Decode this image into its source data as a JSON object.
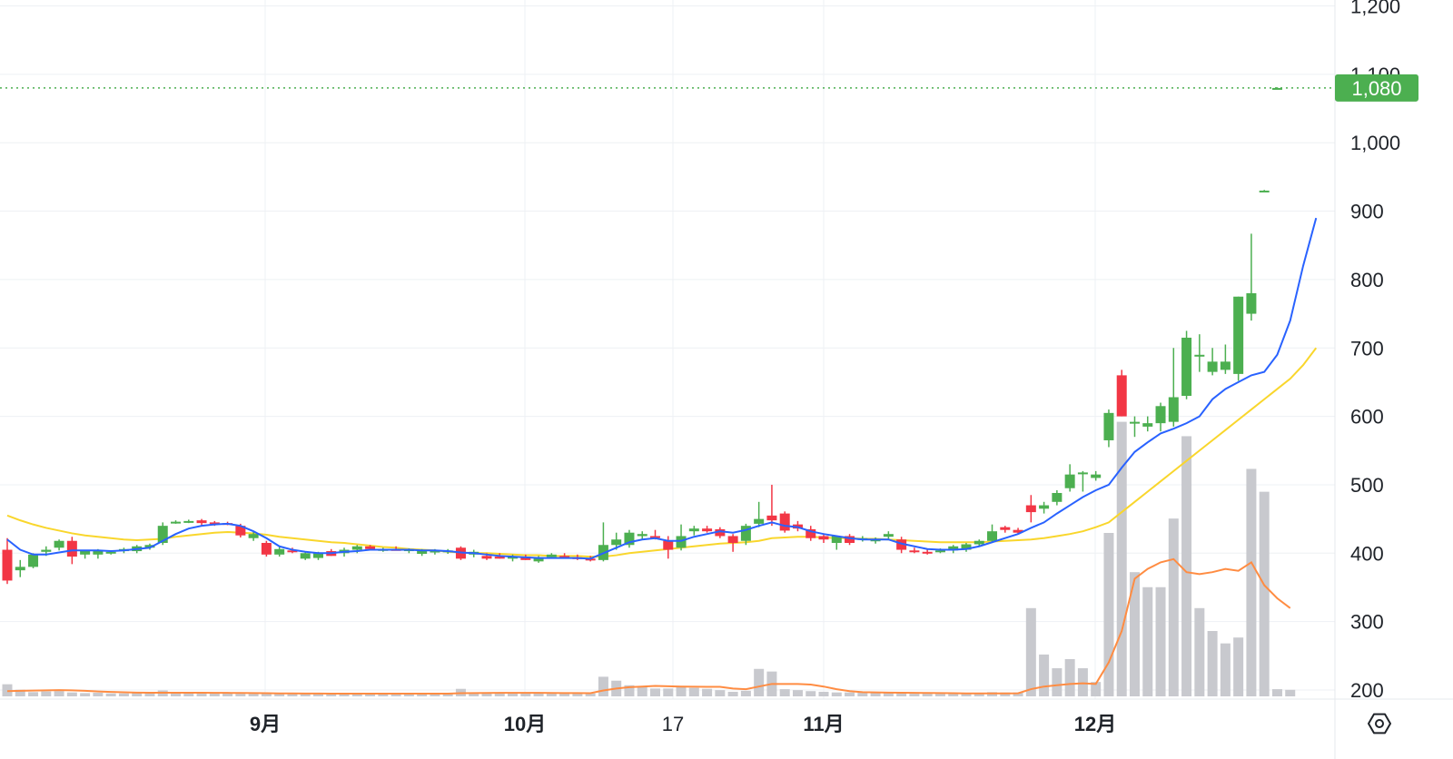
{
  "chart_data": {
    "type": "candlestick",
    "price_axis": {
      "ticks": [
        "200",
        "300",
        "400",
        "500",
        "600",
        "700",
        "800",
        "900",
        "1,000",
        "1,100",
        "1,200"
      ],
      "ylim": [
        190,
        1205
      ]
    },
    "time_axis": {
      "labels": [
        "9月",
        "10月",
        "17",
        "11月",
        "12月"
      ]
    },
    "current_price": {
      "value": 1080,
      "label": "1,080"
    },
    "colors": {
      "up": "#4caf50",
      "down": "#f23645",
      "ma_short": "#2962ff",
      "ma_long": "#f9d62c",
      "volume": "#c8c9ce",
      "volume_ma": "#ff8c42",
      "price_line": "#4caf50",
      "grid": "#eef0f4"
    },
    "candles": [
      {
        "o": 405,
        "h": 422,
        "l": 355,
        "c": 360
      },
      {
        "o": 375,
        "h": 390,
        "l": 365,
        "c": 380
      },
      {
        "o": 380,
        "h": 400,
        "l": 378,
        "c": 398
      },
      {
        "o": 402,
        "h": 410,
        "l": 396,
        "c": 405
      },
      {
        "o": 408,
        "h": 420,
        "l": 404,
        "c": 418
      },
      {
        "o": 418,
        "h": 424,
        "l": 384,
        "c": 395
      },
      {
        "o": 398,
        "h": 405,
        "l": 392,
        "c": 405
      },
      {
        "o": 398,
        "h": 406,
        "l": 392,
        "c": 404
      },
      {
        "o": 400,
        "h": 404,
        "l": 398,
        "c": 402
      },
      {
        "o": 403,
        "h": 408,
        "l": 400,
        "c": 406
      },
      {
        "o": 403,
        "h": 412,
        "l": 400,
        "c": 410
      },
      {
        "o": 408,
        "h": 414,
        "l": 405,
        "c": 412
      },
      {
        "o": 415,
        "h": 445,
        "l": 412,
        "c": 440
      },
      {
        "o": 445,
        "h": 448,
        "l": 443,
        "c": 446
      },
      {
        "o": 446,
        "h": 449,
        "l": 444,
        "c": 447
      },
      {
        "o": 448,
        "h": 450,
        "l": 440,
        "c": 444
      },
      {
        "o": 445,
        "h": 447,
        "l": 440,
        "c": 443
      },
      {
        "o": 444,
        "h": 446,
        "l": 441,
        "c": 442
      },
      {
        "o": 440,
        "h": 443,
        "l": 423,
        "c": 426
      },
      {
        "o": 422,
        "h": 432,
        "l": 418,
        "c": 428
      },
      {
        "o": 415,
        "h": 418,
        "l": 395,
        "c": 398
      },
      {
        "o": 398,
        "h": 410,
        "l": 395,
        "c": 406
      },
      {
        "o": 404,
        "h": 408,
        "l": 400,
        "c": 403
      },
      {
        "o": 392,
        "h": 402,
        "l": 390,
        "c": 400
      },
      {
        "o": 393,
        "h": 402,
        "l": 390,
        "c": 400
      },
      {
        "o": 403,
        "h": 406,
        "l": 396,
        "c": 396
      },
      {
        "o": 400,
        "h": 408,
        "l": 395,
        "c": 405
      },
      {
        "o": 405,
        "h": 412,
        "l": 400,
        "c": 410
      },
      {
        "o": 410,
        "h": 412,
        "l": 404,
        "c": 406
      },
      {
        "o": 405,
        "h": 408,
        "l": 402,
        "c": 406
      },
      {
        "o": 406,
        "h": 410,
        "l": 404,
        "c": 405
      },
      {
        "o": 403,
        "h": 407,
        "l": 400,
        "c": 406
      },
      {
        "o": 399,
        "h": 406,
        "l": 396,
        "c": 404
      },
      {
        "o": 401,
        "h": 406,
        "l": 398,
        "c": 405
      },
      {
        "o": 403,
        "h": 406,
        "l": 399,
        "c": 404
      },
      {
        "o": 408,
        "h": 410,
        "l": 390,
        "c": 392
      },
      {
        "o": 398,
        "h": 405,
        "l": 394,
        "c": 402
      },
      {
        "o": 396,
        "h": 400,
        "l": 390,
        "c": 392
      },
      {
        "o": 395,
        "h": 400,
        "l": 392,
        "c": 392
      },
      {
        "o": 392,
        "h": 398,
        "l": 388,
        "c": 395
      },
      {
        "o": 395,
        "h": 398,
        "l": 390,
        "c": 390
      },
      {
        "o": 388,
        "h": 396,
        "l": 386,
        "c": 394
      },
      {
        "o": 394,
        "h": 400,
        "l": 392,
        "c": 398
      },
      {
        "o": 396,
        "h": 400,
        "l": 392,
        "c": 394
      },
      {
        "o": 394,
        "h": 398,
        "l": 390,
        "c": 392
      },
      {
        "o": 392,
        "h": 396,
        "l": 388,
        "c": 390
      },
      {
        "o": 390,
        "h": 445,
        "l": 388,
        "c": 412
      },
      {
        "o": 412,
        "h": 430,
        "l": 405,
        "c": 420
      },
      {
        "o": 412,
        "h": 434,
        "l": 408,
        "c": 430
      },
      {
        "o": 425,
        "h": 432,
        "l": 420,
        "c": 428
      },
      {
        "o": 425,
        "h": 434,
        "l": 420,
        "c": 423
      },
      {
        "o": 418,
        "h": 425,
        "l": 392,
        "c": 405
      },
      {
        "o": 408,
        "h": 442,
        "l": 404,
        "c": 425
      },
      {
        "o": 432,
        "h": 440,
        "l": 426,
        "c": 436
      },
      {
        "o": 436,
        "h": 440,
        "l": 430,
        "c": 432
      },
      {
        "o": 435,
        "h": 438,
        "l": 422,
        "c": 425
      },
      {
        "o": 425,
        "h": 428,
        "l": 402,
        "c": 415
      },
      {
        "o": 418,
        "h": 443,
        "l": 412,
        "c": 440
      },
      {
        "o": 443,
        "h": 475,
        "l": 438,
        "c": 450
      },
      {
        "o": 455,
        "h": 500,
        "l": 440,
        "c": 448
      },
      {
        "o": 458,
        "h": 461,
        "l": 430,
        "c": 433
      },
      {
        "o": 442,
        "h": 447,
        "l": 432,
        "c": 436
      },
      {
        "o": 435,
        "h": 440,
        "l": 418,
        "c": 422
      },
      {
        "o": 425,
        "h": 428,
        "l": 415,
        "c": 420
      },
      {
        "o": 415,
        "h": 425,
        "l": 405,
        "c": 425
      },
      {
        "o": 425,
        "h": 428,
        "l": 412,
        "c": 415
      },
      {
        "o": 422,
        "h": 425,
        "l": 417,
        "c": 422
      },
      {
        "o": 418,
        "h": 423,
        "l": 414,
        "c": 420
      },
      {
        "o": 424,
        "h": 432,
        "l": 420,
        "c": 428
      },
      {
        "o": 420,
        "h": 424,
        "l": 400,
        "c": 405
      },
      {
        "o": 404,
        "h": 408,
        "l": 400,
        "c": 402
      },
      {
        "o": 402,
        "h": 406,
        "l": 398,
        "c": 400
      },
      {
        "o": 402,
        "h": 407,
        "l": 400,
        "c": 404
      },
      {
        "o": 404,
        "h": 412,
        "l": 400,
        "c": 410
      },
      {
        "o": 405,
        "h": 415,
        "l": 402,
        "c": 413
      },
      {
        "o": 413,
        "h": 420,
        "l": 410,
        "c": 418
      },
      {
        "o": 418,
        "h": 442,
        "l": 415,
        "c": 432
      },
      {
        "o": 438,
        "h": 440,
        "l": 430,
        "c": 434
      },
      {
        "o": 434,
        "h": 437,
        "l": 428,
        "c": 430
      },
      {
        "o": 470,
        "h": 485,
        "l": 445,
        "c": 460
      },
      {
        "o": 465,
        "h": 475,
        "l": 458,
        "c": 470
      },
      {
        "o": 475,
        "h": 492,
        "l": 470,
        "c": 488
      },
      {
        "o": 495,
        "h": 530,
        "l": 490,
        "c": 515
      },
      {
        "o": 518,
        "h": 520,
        "l": 490,
        "c": 518
      },
      {
        "o": 510,
        "h": 520,
        "l": 506,
        "c": 515
      },
      {
        "o": 565,
        "h": 610,
        "l": 555,
        "c": 605
      },
      {
        "o": 660,
        "h": 668,
        "l": 600,
        "c": 600
      },
      {
        "o": 592,
        "h": 600,
        "l": 570,
        "c": 592
      },
      {
        "o": 585,
        "h": 600,
        "l": 578,
        "c": 590
      },
      {
        "o": 590,
        "h": 620,
        "l": 578,
        "c": 615
      },
      {
        "o": 592,
        "h": 700,
        "l": 585,
        "c": 628
      },
      {
        "o": 630,
        "h": 725,
        "l": 625,
        "c": 715
      },
      {
        "o": 690,
        "h": 720,
        "l": 665,
        "c": 690
      },
      {
        "o": 665,
        "h": 700,
        "l": 660,
        "c": 680
      },
      {
        "o": 668,
        "h": 705,
        "l": 662,
        "c": 680
      },
      {
        "o": 662,
        "h": 775,
        "l": 652,
        "c": 775
      },
      {
        "o": 750,
        "h": 867,
        "l": 740,
        "c": 780
      },
      {
        "o": 930,
        "h": 931,
        "l": 929,
        "c": 930
      },
      {
        "o": 1080,
        "h": 1081,
        "l": 1079,
        "c": 1080
      }
    ],
    "ma_short": [
      420,
      405,
      398,
      398,
      401,
      404,
      404,
      404,
      403,
      404,
      406,
      408,
      418,
      428,
      436,
      440,
      442,
      443,
      440,
      432,
      422,
      410,
      405,
      402,
      400,
      400,
      402,
      403,
      405,
      405,
      405,
      405,
      404,
      404,
      403,
      401,
      400,
      398,
      396,
      395,
      394,
      393,
      393,
      393,
      393,
      392,
      400,
      408,
      416,
      420,
      422,
      418,
      418,
      424,
      428,
      432,
      430,
      434,
      440,
      445,
      440,
      438,
      432,
      428,
      425,
      422,
      420,
      420,
      420,
      414,
      410,
      406,
      405,
      405,
      406,
      410,
      416,
      422,
      428,
      437,
      445,
      458,
      470,
      482,
      492,
      500,
      525,
      548,
      562,
      575,
      582,
      590,
      600,
      625,
      640,
      650,
      660,
      665,
      690,
      740,
      820,
      890
    ],
    "ma_long": [
      455,
      448,
      442,
      437,
      433,
      429,
      426,
      424,
      422,
      420,
      419,
      420,
      421,
      424,
      426,
      428,
      430,
      431,
      430,
      429,
      427,
      424,
      422,
      420,
      418,
      416,
      415,
      413,
      411,
      409,
      408,
      406,
      405,
      404,
      402,
      401,
      400,
      400,
      399,
      398,
      397,
      397,
      396,
      396,
      396,
      395,
      395,
      397,
      400,
      402,
      404,
      406,
      408,
      410,
      412,
      414,
      415,
      416,
      418,
      422,
      423,
      424,
      424,
      423,
      422,
      422,
      421,
      421,
      420,
      419,
      418,
      417,
      416,
      416,
      416,
      416,
      417,
      418,
      419,
      420,
      422,
      425,
      428,
      432,
      438,
      445,
      460,
      475,
      490,
      505,
      520,
      535,
      550,
      565,
      580,
      595,
      610,
      625,
      640,
      655,
      675,
      700
    ],
    "volume": [
      185,
      101,
      65,
      75,
      80,
      60,
      50,
      55,
      45,
      45,
      50,
      45,
      90,
      60,
      60,
      60,
      50,
      45,
      40,
      40,
      45,
      45,
      40,
      40,
      40,
      40,
      40,
      40,
      40,
      40,
      40,
      40,
      40,
      40,
      40,
      115,
      60,
      60,
      60,
      55,
      50,
      45,
      45,
      45,
      45,
      45,
      300,
      240,
      170,
      140,
      120,
      120,
      150,
      130,
      115,
      95,
      70,
      85,
      420,
      380,
      110,
      95,
      80,
      70,
      60,
      60,
      55,
      55,
      50,
      45,
      40,
      40,
      40,
      40,
      40,
      50,
      65,
      60,
      60,
      1350,
      640,
      430,
      570,
      430,
      220,
      2500,
      4200,
      1900,
      1670,
      1670,
      2720,
      3980,
      1350,
      1000,
      810,
      900,
      3480,
      3130,
      110,
      100
    ],
    "volume_ma": [
      80,
      85,
      88,
      92,
      95,
      92,
      85,
      75,
      68,
      62,
      58,
      55,
      56,
      56,
      56,
      55,
      54,
      53,
      52,
      50,
      48,
      46,
      45,
      44,
      43,
      42,
      42,
      42,
      42,
      42,
      42,
      42,
      42,
      42,
      42,
      48,
      50,
      52,
      54,
      54,
      54,
      53,
      52,
      51,
      50,
      49,
      90,
      120,
      140,
      150,
      160,
      155,
      150,
      148,
      146,
      145,
      120,
      110,
      150,
      190,
      190,
      190,
      180,
      150,
      110,
      80,
      65,
      60,
      58,
      56,
      54,
      52,
      50,
      48,
      46,
      45,
      45,
      46,
      47,
      110,
      150,
      170,
      190,
      200,
      190,
      520,
      1000,
      1800,
      1950,
      2050,
      2100,
      1900,
      1870,
      1900,
      1950,
      1920,
      2050,
      1700,
      1500,
      1350
    ]
  }
}
